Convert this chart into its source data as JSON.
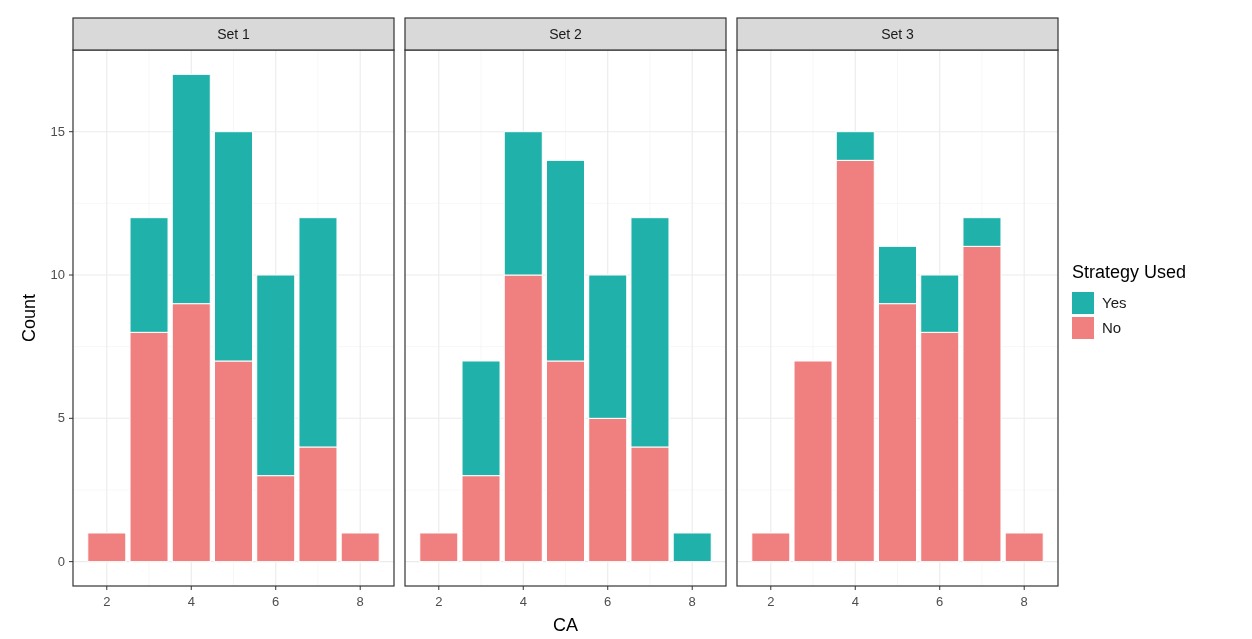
{
  "chart_data": [
    {
      "type": "bar",
      "title": "Set 1",
      "ylabel": "Count",
      "x": [
        2,
        3,
        4,
        5,
        6,
        7,
        8
      ],
      "stacked": true,
      "xlim": [
        1.2,
        8.8
      ],
      "xticks": [
        2,
        4,
        6,
        8
      ],
      "ylim": [
        -0.85,
        17.85
      ],
      "yticks": [
        0,
        5,
        10,
        15
      ],
      "grid": true,
      "series": [
        {
          "color": "#f08080",
          "values": [
            1,
            8,
            9,
            7,
            3,
            4,
            1
          ]
        },
        {
          "color": "#20b2aa",
          "values": [
            null,
            4,
            8,
            8,
            7,
            8,
            null
          ]
        }
      ]
    },
    {
      "type": "bar",
      "title": "Set 2",
      "xlabel": "CA",
      "x": [
        2,
        3,
        4,
        5,
        6,
        7,
        8
      ],
      "stacked": true,
      "xlim": [
        1.2,
        8.8
      ],
      "xticks": [
        2,
        4,
        6,
        8
      ],
      "ylim": [
        -0.85,
        17.85
      ],
      "tick_labels": "x",
      "grid": true,
      "series": [
        {
          "color": "#f08080",
          "values": [
            1,
            3,
            10,
            7,
            5,
            4,
            null
          ]
        },
        {
          "color": "#20b2aa",
          "values": [
            null,
            4,
            5,
            7,
            5,
            8,
            1
          ]
        }
      ]
    },
    {
      "type": "bar",
      "title": "Set 3",
      "x": [
        2,
        3,
        4,
        5,
        6,
        7,
        8
      ],
      "stacked": true,
      "xlim": [
        1.2,
        8.8
      ],
      "xticks": [
        2,
        4,
        6,
        8
      ],
      "ylim": [
        -0.85,
        17.85
      ],
      "tick_labels": "x",
      "grid": true,
      "legend": "right",
      "legend_title": "Strategy Used",
      "series": [
        {
          "name": "No",
          "color": "#f08080",
          "values": [
            1,
            7,
            14,
            9,
            8,
            11,
            1
          ]
        },
        {
          "name": "Yes",
          "color": "#20b2aa",
          "values": [
            null,
            null,
            1,
            2,
            2,
            1,
            null
          ]
        }
      ]
    }
  ]
}
